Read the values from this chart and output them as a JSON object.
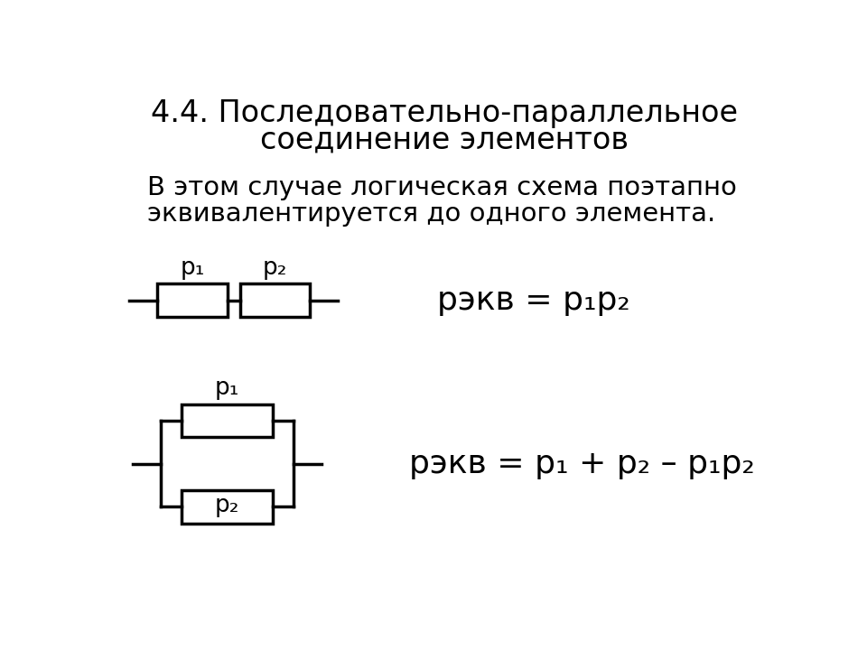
{
  "title_line1": "4.4. Последовательно-параллельное",
  "title_line2": "соединение элементов",
  "body_line1": "В этом случае логическая схема поэтапно",
  "body_line2": "эквивалентируется до одного элемента.",
  "background_color": "#ffffff",
  "text_color": "#000000",
  "title_fontsize": 24,
  "body_fontsize": 21,
  "label_fontsize": 19,
  "formula_fontsize": 26
}
